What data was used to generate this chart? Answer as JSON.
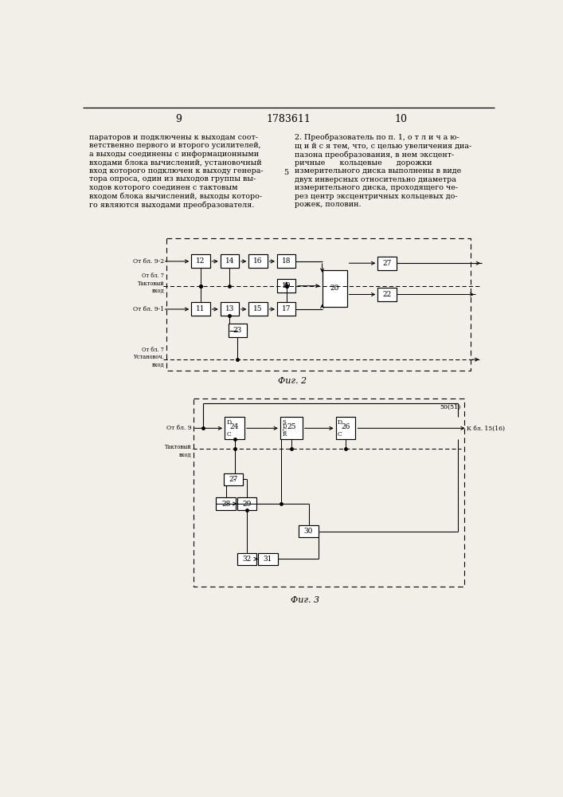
{
  "bg": "#f2efe9",
  "page_left": "9",
  "page_center": "1783611",
  "page_right": "10",
  "col_left": "параторов и подключены к выходам соот-\nветственно первого и второго усилителей,\nа выходы соединены с информационными\nвходами блока вычислений, установочный\nвход которого подключен к выходу генера-\nтора опроса, один из выходов группы вы-\nходов которого соединен с тактовым\nвходом блока вычислений, выходы которо-\nго являются выходами преобразователя.",
  "col_right": "2. Преобразователь по п. 1, о т л и ч а ю-\nщ и й с я тем, что, с целью увеличения диа-\nпазона преобразования, в нем эксцент-\nричные      кольцевые      дорожки\nизмерительного диска выполнены в виде\nдвух инверсных относительно диаметра\nизмерительного диска, проходящего че-\nрез центр эксцентричных кольцевых до-\nрожек, половин.",
  "num5": "5",
  "fig2_cap": "Фиг. 2",
  "fig3_cap": "Фиг. 3"
}
